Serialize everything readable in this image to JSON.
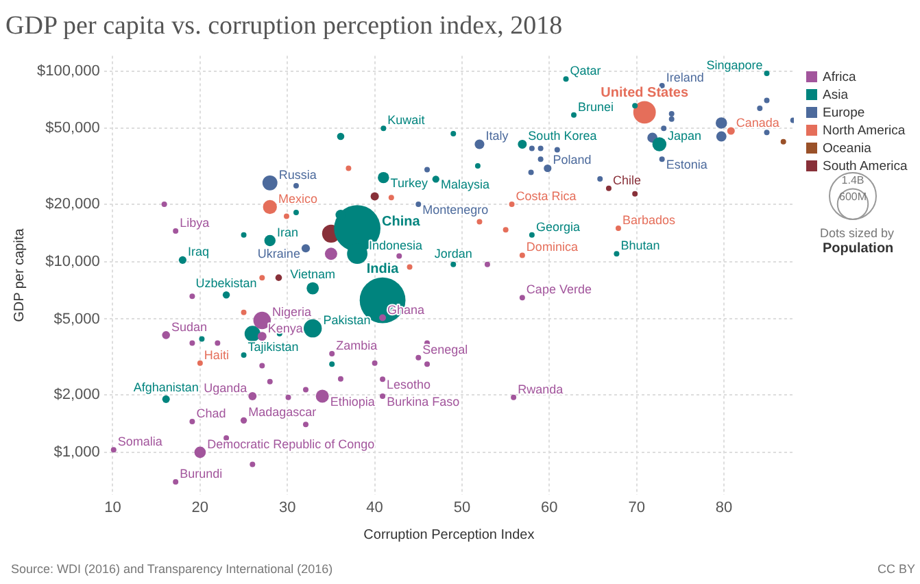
{
  "chart_data": {
    "type": "bubble",
    "title": "GDP per capita vs. corruption perception index, 2018",
    "xlabel": "Corruption Perception Index",
    "ylabel": "GDP per capita",
    "xlim": [
      9,
      88
    ],
    "xticks": [
      10,
      20,
      30,
      40,
      50,
      60,
      70,
      80
    ],
    "ylim": [
      600,
      120000
    ],
    "yticks": [
      {
        "value": 1000,
        "label": "$1,000"
      },
      {
        "value": 2000,
        "label": "$2,000"
      },
      {
        "value": 5000,
        "label": "$5,000"
      },
      {
        "value": 10000,
        "label": "$10,000"
      },
      {
        "value": 20000,
        "label": "$20,000"
      },
      {
        "value": 50000,
        "label": "$50,000"
      },
      {
        "value": 100000,
        "label": "$100,000"
      }
    ],
    "log": "y",
    "grid": true,
    "legend": "right",
    "size_legend": [
      {
        "value": 1400000000,
        "label": "1.4B"
      },
      {
        "value": 600000000,
        "label": "600M"
      }
    ],
    "series": [
      {
        "name": "Africa",
        "color": "#a2559c",
        "x": [
          17.2,
          16.1,
          27.1,
          27.1,
          35.1,
          26.0,
          34.0,
          19.1,
          25.0,
          20.0,
          10.1,
          17.2,
          40.9,
          45.0,
          40.9,
          40.9,
          55.9,
          56.9,
          15.9,
          19.1,
          19.1,
          22.0,
          27.1,
          28.0,
          30.1,
          32.1,
          32.1,
          23.0,
          26.0,
          36.1,
          40.0,
          46.0,
          46.0,
          35.0,
          42.8,
          52.9
        ],
        "values": [
          14500,
          4120,
          4920,
          4060,
          3290,
          1970,
          1970,
          1450,
          1470,
          1000,
          1030,
          700,
          5080,
          3140,
          2420,
          1970,
          1940,
          6470,
          20000,
          6580,
          3740,
          3740,
          2850,
          2350,
          1940,
          2130,
          1400,
          1190,
          865,
          2430,
          2940,
          3740,
          2900,
          11000,
          10700,
          9680
        ],
        "sizes": [
          19400000,
          41000000,
          196000000,
          51000000,
          19400000,
          43000000,
          109000000,
          19400000,
          26000000,
          84000000,
          19400000,
          19400000,
          30000000,
          19400000,
          19400000,
          20000000,
          19400000,
          19400000,
          19400000,
          19400000,
          19400000,
          19400000,
          19400000,
          19400000,
          19400000,
          19400000,
          19400000,
          19400000,
          19400000,
          19400000,
          19400000,
          19400000,
          19400000,
          98000000,
          19400000,
          19400000
        ]
      },
      {
        "name": "Asia",
        "color": "#00847e",
        "x": [
          18.0,
          28.0,
          23.0,
          32.9,
          32.9,
          25.0,
          16.1,
          40.9,
          38.0,
          38.0,
          41.0,
          41.0,
          47.0,
          56.9,
          61.9,
          62.8,
          58.0,
          49.0,
          84.9,
          72.6,
          67.7,
          36.1,
          36.1,
          26.0,
          29.1,
          25.0,
          20.2,
          35.1,
          31.0,
          51.8,
          49.0,
          69.8
        ],
        "values": [
          10200,
          12900,
          6690,
          7250,
          4470,
          3240,
          1900,
          6270,
          14960,
          11000,
          50000,
          27600,
          27100,
          41300,
          90800,
          58800,
          13800,
          9680,
          97300,
          41300,
          11000,
          45400,
          17600,
          4190,
          4190,
          13800,
          3930,
          2900,
          18100,
          31800,
          46900,
          65800
        ],
        "sizes": [
          38000000,
          82000000,
          33000000,
          96000000,
          212000000,
          19400000,
          37000000,
          1350000000,
          1390000000,
          268000000,
          19400000,
          82000000,
          32000000,
          51000000,
          19400000,
          19400000,
          19400000,
          19400000,
          19400000,
          127000000,
          19400000,
          34000000,
          69000000,
          161000000,
          19400000,
          19400000,
          19400000,
          19400000,
          19400000,
          19400000,
          19400000,
          19400000
        ]
      },
      {
        "name": "Europe",
        "color": "#4c6a9c",
        "x": [
          28.0,
          32.1,
          52.0,
          59.8,
          45.0,
          72.9,
          72.9,
          31.0,
          46.0,
          58.0,
          59.0,
          60.9,
          59.0,
          57.9,
          71.8,
          79.7,
          79.7,
          74.0,
          74.0,
          73.1,
          84.1,
          84.9,
          87.9,
          84.9,
          65.8
        ],
        "values": [
          25900,
          11750,
          41300,
          30900,
          20000,
          83800,
          34500,
          25000,
          30400,
          39300,
          39300,
          38600,
          34500,
          29400,
          44700,
          53400,
          45400,
          59700,
          56000,
          50000,
          63700,
          70100,
          55100,
          47600,
          27200
        ],
        "sizes": [
          144000000,
          45000000,
          60000000,
          38000000,
          19400000,
          19400000,
          19400000,
          19400000,
          19400000,
          19400000,
          19400000,
          19400000,
          19400000,
          19400000,
          66000000,
          83000000,
          67000000,
          19400000,
          19400000,
          19400000,
          19400000,
          19400000,
          19400000,
          19400000,
          19400000
        ]
      },
      {
        "name": "North America",
        "color": "#e56e5a",
        "x": [
          28.0,
          20.0,
          55.7,
          56.9,
          67.9,
          70.9,
          80.8,
          37.0,
          29.9,
          27.1,
          25.0,
          44.0,
          52.0,
          55.0,
          41.9
        ],
        "values": [
          19360,
          2940,
          20000,
          10800,
          14960,
          60700,
          48500,
          30900,
          17300,
          8240,
          5420,
          9380,
          16200,
          14700,
          21700
        ],
        "sizes": [
          126000000,
          19400000,
          19400000,
          19400000,
          19400000,
          327000000,
          37000000,
          19400000,
          19400000,
          19400000,
          19400000,
          19400000,
          19400000,
          19400000,
          19400000
        ]
      },
      {
        "name": "Oceania",
        "color": "#9a5129",
        "x": [
          86.8
        ],
        "values": [
          42600
        ],
        "sizes": [
          19400000
        ]
      },
      {
        "name": "South America",
        "color": "#883039",
        "x": [
          66.8,
          35.0,
          40.0,
          69.8,
          29.0
        ],
        "values": [
          24250,
          14030,
          22000,
          22700,
          8240
        ],
        "sizes": [
          19400000,
          209000000,
          44000000,
          19400000,
          28000000
        ]
      }
    ],
    "annotations": [
      "Source: WDI (2016) and Transparency International (2016)",
      "CC BY",
      "Dots sized by",
      "Population",
      {
        "text": "Libya",
        "x": 17.2,
        "y": 14500
      },
      {
        "text": "Sudan",
        "x": 16.1,
        "y": 4120
      },
      {
        "text": "Nigeria",
        "x": 27.1,
        "y": 4920
      },
      {
        "text": "Kenya",
        "x": 27.1,
        "y": 4060
      },
      {
        "text": "Zambia",
        "x": 35.1,
        "y": 3290
      },
      {
        "text": "Uganda",
        "x": 26.0,
        "y": 1970
      },
      {
        "text": "Ethiopia",
        "x": 34.0,
        "y": 1970
      },
      {
        "text": "Chad",
        "x": 19.1,
        "y": 1450
      },
      {
        "text": "Madagascar",
        "x": 25.0,
        "y": 1470
      },
      {
        "text": "Democratic Republic of Congo",
        "x": 20.0,
        "y": 1000
      },
      {
        "text": "Somalia",
        "x": 10.1,
        "y": 1030
      },
      {
        "text": "Burundi",
        "x": 17.2,
        "y": 700
      },
      {
        "text": "Ghana",
        "x": 40.9,
        "y": 5080
      },
      {
        "text": "Senegal",
        "x": 45.0,
        "y": 3140
      },
      {
        "text": "Lesotho",
        "x": 40.9,
        "y": 2420
      },
      {
        "text": "Burkina Faso",
        "x": 40.9,
        "y": 1970
      },
      {
        "text": "Rwanda",
        "x": 55.9,
        "y": 1940
      },
      {
        "text": "Cape Verde",
        "x": 56.9,
        "y": 6470
      },
      {
        "text": "Iraq",
        "x": 18.0,
        "y": 10200
      },
      {
        "text": "Iran",
        "x": 28.0,
        "y": 12900
      },
      {
        "text": "Uzbekistan",
        "x": 23.0,
        "y": 6690
      },
      {
        "text": "Vietnam",
        "x": 32.9,
        "y": 7250
      },
      {
        "text": "Pakistan",
        "x": 32.9,
        "y": 4470
      },
      {
        "text": "Tajikistan",
        "x": 25.0,
        "y": 3240
      },
      {
        "text": "Afghanistan",
        "x": 16.1,
        "y": 1900
      },
      {
        "text": "India",
        "x": 40.9,
        "y": 6270
      },
      {
        "text": "China",
        "x": 38.0,
        "y": 14960
      },
      {
        "text": "Indonesia",
        "x": 38.0,
        "y": 11000
      },
      {
        "text": "Kuwait",
        "x": 41.0,
        "y": 50000
      },
      {
        "text": "Turkey",
        "x": 41.0,
        "y": 27600
      },
      {
        "text": "Malaysia",
        "x": 47.0,
        "y": 27100
      },
      {
        "text": "South Korea",
        "x": 56.9,
        "y": 41300
      },
      {
        "text": "Qatar",
        "x": 61.9,
        "y": 90800
      },
      {
        "text": "Brunei",
        "x": 62.8,
        "y": 58800
      },
      {
        "text": "Georgia",
        "x": 58.0,
        "y": 13800
      },
      {
        "text": "Jordan",
        "x": 49.0,
        "y": 9680
      },
      {
        "text": "Singapore",
        "x": 84.9,
        "y": 97300
      },
      {
        "text": "Japan",
        "x": 72.6,
        "y": 41300
      },
      {
        "text": "Bhutan",
        "x": 67.7,
        "y": 11000
      },
      {
        "text": "Russia",
        "x": 28.0,
        "y": 25900
      },
      {
        "text": "Ukraine",
        "x": 32.1,
        "y": 11750
      },
      {
        "text": "Italy",
        "x": 52.0,
        "y": 41300
      },
      {
        "text": "Poland",
        "x": 59.8,
        "y": 30900
      },
      {
        "text": "Montenegro",
        "x": 45.0,
        "y": 20000
      },
      {
        "text": "Ireland",
        "x": 72.9,
        "y": 83800
      },
      {
        "text": "Estonia",
        "x": 72.9,
        "y": 34500
      },
      {
        "text": "Mexico",
        "x": 28.0,
        "y": 19360
      },
      {
        "text": "Haiti",
        "x": 20.0,
        "y": 2940
      },
      {
        "text": "Costa Rica",
        "x": 55.7,
        "y": 20000
      },
      {
        "text": "Dominica",
        "x": 56.9,
        "y": 10800
      },
      {
        "text": "Barbados",
        "x": 67.9,
        "y": 14960
      },
      {
        "text": "United States",
        "x": 70.9,
        "y": 60700
      },
      {
        "text": "Canada",
        "x": 80.8,
        "y": 48500
      },
      {
        "text": "Chile",
        "x": 66.8,
        "y": 24250
      }
    ]
  }
}
